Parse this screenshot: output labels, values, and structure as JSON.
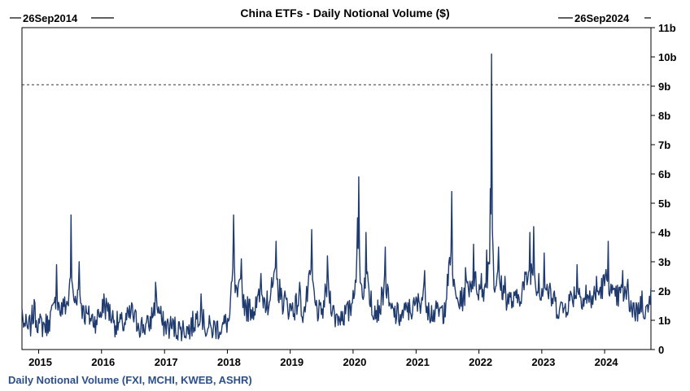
{
  "chart_data": {
    "type": "line",
    "title": "China ETFs - Daily Notional Volume ($)",
    "start_label": "26Sep2014",
    "end_label": "26Sep2024",
    "footer": "Daily Notional Volume (FXI, MCHI, KWEB, ASHR)",
    "x_range": [
      "2014-09-26",
      "2024-09-26"
    ],
    "ylim": [
      0,
      11
    ],
    "y_unit": "billions USD",
    "yticks": [
      {
        "value": 0,
        "label": "0"
      },
      {
        "value": 1,
        "label": "1b"
      },
      {
        "value": 2,
        "label": "2b"
      },
      {
        "value": 3,
        "label": "3b"
      },
      {
        "value": 4,
        "label": "4b"
      },
      {
        "value": 5,
        "label": "5b"
      },
      {
        "value": 6,
        "label": "6b"
      },
      {
        "value": 7,
        "label": "7b"
      },
      {
        "value": 8,
        "label": "8b"
      },
      {
        "value": 9,
        "label": "9b"
      },
      {
        "value": 10,
        "label": "10b"
      },
      {
        "value": 11,
        "label": "11b"
      }
    ],
    "xticks": [
      {
        "date": "2015-01-01",
        "label": "2015"
      },
      {
        "date": "2016-01-01",
        "label": "2016"
      },
      {
        "date": "2017-01-01",
        "label": "2017"
      },
      {
        "date": "2018-01-01",
        "label": "2018"
      },
      {
        "date": "2019-01-01",
        "label": "2019"
      },
      {
        "date": "2020-01-01",
        "label": "2020"
      },
      {
        "date": "2021-01-01",
        "label": "2021"
      },
      {
        "date": "2022-01-01",
        "label": "2022"
      },
      {
        "date": "2023-01-01",
        "label": "2023"
      },
      {
        "date": "2024-01-01",
        "label": "2024"
      }
    ],
    "reference_line": {
      "value": 9.05,
      "style": "dashed"
    },
    "series": [
      {
        "color": "#1f3a6e",
        "points": [
          [
            "2014-09-26",
            1.4
          ],
          [
            "2014-10-15",
            0.8
          ],
          [
            "2014-11-01",
            0.7
          ],
          [
            "2014-11-20",
            1.0
          ],
          [
            "2014-12-10",
            1.6
          ],
          [
            "2015-01-05",
            0.9
          ],
          [
            "2015-02-01",
            0.9
          ],
          [
            "2015-03-01",
            1.0
          ],
          [
            "2015-04-01",
            1.6
          ],
          [
            "2015-04-15",
            2.9
          ],
          [
            "2015-05-01",
            1.5
          ],
          [
            "2015-06-01",
            1.8
          ],
          [
            "2015-07-01",
            2.4
          ],
          [
            "2015-07-08",
            4.6
          ],
          [
            "2015-07-20",
            2.0
          ],
          [
            "2015-08-24",
            3.0
          ],
          [
            "2015-09-15",
            1.5
          ],
          [
            "2015-10-15",
            1.2
          ],
          [
            "2015-12-01",
            1.0
          ],
          [
            "2016-01-15",
            1.9
          ],
          [
            "2016-02-10",
            1.6
          ],
          [
            "2016-03-15",
            1.0
          ],
          [
            "2016-05-01",
            0.9
          ],
          [
            "2016-06-24",
            1.6
          ],
          [
            "2016-08-01",
            0.9
          ],
          [
            "2016-10-01",
            0.8
          ],
          [
            "2016-11-10",
            2.3
          ],
          [
            "2016-12-15",
            1.0
          ],
          [
            "2017-02-01",
            0.8
          ],
          [
            "2017-04-01",
            0.7
          ],
          [
            "2017-06-01",
            0.7
          ],
          [
            "2017-08-01",
            1.9
          ],
          [
            "2017-08-20",
            0.8
          ],
          [
            "2017-10-01",
            0.7
          ],
          [
            "2017-12-01",
            0.8
          ],
          [
            "2018-01-15",
            1.2
          ],
          [
            "2018-02-06",
            4.6
          ],
          [
            "2018-02-20",
            2.2
          ],
          [
            "2018-03-23",
            3.1
          ],
          [
            "2018-04-15",
            1.7
          ],
          [
            "2018-06-15",
            1.8
          ],
          [
            "2018-07-15",
            2.6
          ],
          [
            "2018-08-20",
            2.0
          ],
          [
            "2018-10-11",
            3.7
          ],
          [
            "2018-11-01",
            2.4
          ],
          [
            "2018-12-01",
            2.0
          ],
          [
            "2019-01-15",
            1.6
          ],
          [
            "2019-02-25",
            2.3
          ],
          [
            "2019-03-20",
            1.3
          ],
          [
            "2019-05-06",
            4.1
          ],
          [
            "2019-05-20",
            2.0
          ],
          [
            "2019-07-01",
            1.2
          ],
          [
            "2019-08-05",
            3.2
          ],
          [
            "2019-09-15",
            1.2
          ],
          [
            "2019-11-01",
            1.3
          ],
          [
            "2019-12-15",
            1.5
          ],
          [
            "2020-01-27",
            4.5
          ],
          [
            "2020-02-03",
            5.9
          ],
          [
            "2020-02-20",
            2.2
          ],
          [
            "2020-03-16",
            4.0
          ],
          [
            "2020-04-15",
            2.0
          ],
          [
            "2020-06-01",
            1.5
          ],
          [
            "2020-07-06",
            3.5
          ],
          [
            "2020-08-01",
            1.6
          ],
          [
            "2020-10-01",
            1.2
          ],
          [
            "2020-11-15",
            1.6
          ],
          [
            "2021-01-01",
            1.8
          ],
          [
            "2021-02-20",
            2.7
          ],
          [
            "2021-03-15",
            1.6
          ],
          [
            "2021-05-01",
            1.4
          ],
          [
            "2021-06-15",
            1.6
          ],
          [
            "2021-07-27",
            5.4
          ],
          [
            "2021-08-10",
            2.4
          ],
          [
            "2021-09-15",
            2.0
          ],
          [
            "2021-10-15",
            2.8
          ],
          [
            "2021-12-01",
            3.6
          ],
          [
            "2022-01-15",
            2.6
          ],
          [
            "2022-02-15",
            3.4
          ],
          [
            "2022-03-08",
            5.5
          ],
          [
            "2022-03-15",
            10.1
          ],
          [
            "2022-03-25",
            3.2
          ],
          [
            "2022-04-25",
            3.5
          ],
          [
            "2022-06-01",
            2.5
          ],
          [
            "2022-08-01",
            2.0
          ],
          [
            "2022-10-24",
            4.0
          ],
          [
            "2022-11-15",
            4.2
          ],
          [
            "2022-12-15",
            2.6
          ],
          [
            "2023-01-15",
            3.3
          ],
          [
            "2023-03-15",
            2.0
          ],
          [
            "2023-05-01",
            1.6
          ],
          [
            "2023-07-25",
            2.9
          ],
          [
            "2023-09-15",
            2.2
          ],
          [
            "2023-11-15",
            2.5
          ],
          [
            "2024-01-22",
            3.7
          ],
          [
            "2024-02-15",
            2.2
          ],
          [
            "2024-04-15",
            2.7
          ],
          [
            "2024-05-15",
            2.4
          ],
          [
            "2024-06-15",
            1.6
          ],
          [
            "2024-07-15",
            1.6
          ],
          [
            "2024-08-05",
            2.0
          ],
          [
            "2024-09-01",
            1.5
          ],
          [
            "2024-09-26",
            2.1
          ]
        ]
      }
    ]
  }
}
